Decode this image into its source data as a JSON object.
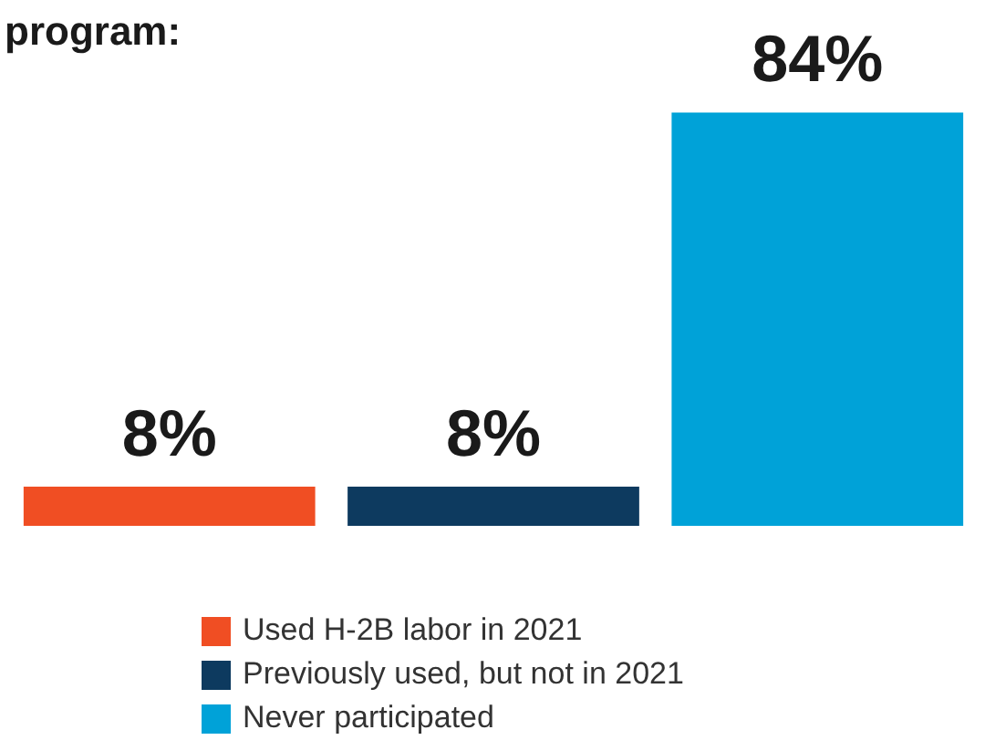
{
  "chart_data": {
    "type": "bar",
    "title": "program:",
    "categories": [
      null,
      null,
      null
    ],
    "stacked": true,
    "series": [
      {
        "name": "Used H-2B labor in 2021",
        "color": "#f04e23",
        "values": [
          8,
          0,
          0
        ],
        "value_labels": [
          "8%",
          null,
          null
        ]
      },
      {
        "name": "Previously used, but not in 2021",
        "color": "#0d3a5f",
        "values": [
          0,
          8,
          0
        ],
        "value_labels": [
          null,
          "8%",
          null
        ]
      },
      {
        "name": "Never participated",
        "color": "#00a2d8",
        "values": [
          0,
          0,
          84
        ],
        "value_labels": [
          null,
          null,
          "84%"
        ]
      }
    ],
    "legend": "bottom"
  }
}
